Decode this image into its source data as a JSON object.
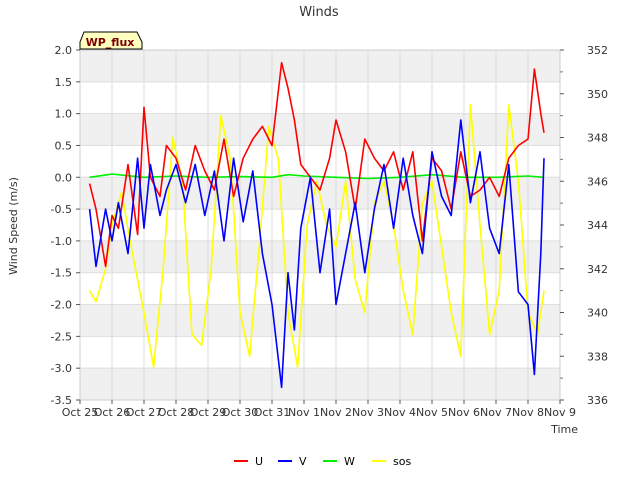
{
  "chart_data": {
    "type": "line",
    "title": "Winds",
    "xlabel": "Time",
    "ylabel": "Wind Speed (m/s)",
    "y2label": "",
    "badge": "WP_flux",
    "ylim": [
      -3.5,
      2.0
    ],
    "y2lim": [
      336,
      352
    ],
    "xlim": [
      0,
      15
    ],
    "yticks": [
      "-3.5",
      "-3.0",
      "-2.5",
      "-2.0",
      "-1.5",
      "-1.0",
      "-0.5",
      "0.0",
      "0.5",
      "1.0",
      "1.5",
      "2.0"
    ],
    "y2ticks": [
      "336",
      "338",
      "340",
      "342",
      "344",
      "346",
      "348",
      "350",
      "352"
    ],
    "xtick_labels": [
      "Oct 25",
      "Oct 26",
      "Oct 27",
      "Oct 28",
      "Oct 29",
      "Oct 30",
      "Oct 31",
      "Nov 1",
      "Nov 2",
      "Nov 3",
      "Nov 4",
      "Nov 5",
      "Nov 6",
      "Nov 7",
      "Nov 8",
      "Nov 9"
    ],
    "grid": true,
    "legend_position": "bottom-center",
    "series": [
      {
        "name": "U",
        "color": "#ff0000",
        "axis": "left",
        "x": [
          0.3,
          0.5,
          0.8,
          1.0,
          1.2,
          1.5,
          1.8,
          2.0,
          2.2,
          2.5,
          2.7,
          3.0,
          3.3,
          3.6,
          3.9,
          4.2,
          4.5,
          4.8,
          5.1,
          5.4,
          5.7,
          6.0,
          6.3,
          6.5,
          6.7,
          6.9,
          7.2,
          7.5,
          7.8,
          8.0,
          8.3,
          8.6,
          8.9,
          9.2,
          9.5,
          9.8,
          10.1,
          10.4,
          10.7,
          11.0,
          11.3,
          11.6,
          11.9,
          12.2,
          12.5,
          12.8,
          13.1,
          13.4,
          13.7,
          14.0,
          14.2,
          14.4,
          14.5
        ],
        "y": [
          -0.1,
          -0.5,
          -1.4,
          -0.6,
          -0.8,
          0.2,
          -0.9,
          1.1,
          0.0,
          -0.3,
          0.5,
          0.3,
          -0.2,
          0.5,
          0.1,
          -0.2,
          0.6,
          -0.3,
          0.3,
          0.6,
          0.8,
          0.5,
          1.8,
          1.4,
          0.9,
          0.2,
          0.0,
          -0.2,
          0.3,
          0.9,
          0.4,
          -0.5,
          0.6,
          0.3,
          0.1,
          0.4,
          -0.2,
          0.4,
          -1.0,
          0.3,
          0.1,
          -0.5,
          0.4,
          -0.3,
          -0.2,
          0.0,
          -0.3,
          0.3,
          0.5,
          0.6,
          1.7,
          1.0,
          0.7
        ]
      },
      {
        "name": "V",
        "color": "#0000ff",
        "axis": "left",
        "x": [
          0.3,
          0.5,
          0.8,
          1.0,
          1.2,
          1.5,
          1.8,
          2.0,
          2.2,
          2.5,
          2.7,
          3.0,
          3.3,
          3.6,
          3.9,
          4.2,
          4.5,
          4.8,
          5.1,
          5.4,
          5.7,
          6.0,
          6.3,
          6.5,
          6.7,
          6.9,
          7.2,
          7.5,
          7.8,
          8.0,
          8.3,
          8.6,
          8.9,
          9.2,
          9.5,
          9.8,
          10.1,
          10.4,
          10.7,
          11.0,
          11.3,
          11.6,
          11.9,
          12.2,
          12.5,
          12.8,
          13.1,
          13.4,
          13.7,
          14.0,
          14.2,
          14.4,
          14.5
        ],
        "y": [
          -0.5,
          -1.4,
          -0.5,
          -1.0,
          -0.4,
          -1.2,
          0.3,
          -0.8,
          0.2,
          -0.6,
          -0.2,
          0.2,
          -0.4,
          0.2,
          -0.6,
          0.1,
          -1.0,
          0.3,
          -0.7,
          0.1,
          -1.2,
          -2.0,
          -3.3,
          -1.5,
          -2.4,
          -0.8,
          0.0,
          -1.5,
          -0.5,
          -2.0,
          -1.2,
          -0.4,
          -1.5,
          -0.5,
          0.2,
          -0.8,
          0.3,
          -0.6,
          -1.2,
          0.4,
          -0.3,
          -0.6,
          0.9,
          -0.4,
          0.4,
          -0.8,
          -1.2,
          0.2,
          -1.8,
          -2.0,
          -3.1,
          -1.2,
          0.3
        ]
      },
      {
        "name": "W",
        "color": "#00ee00",
        "axis": "left",
        "x": [
          0.3,
          1.0,
          2.0,
          3.0,
          4.0,
          5.0,
          6.0,
          6.5,
          7.0,
          8.0,
          9.0,
          10.0,
          11.0,
          12.0,
          13.0,
          14.0,
          14.5
        ],
        "y": [
          0.0,
          0.05,
          0.0,
          0.02,
          0.0,
          0.01,
          0.0,
          0.04,
          0.02,
          0.0,
          -0.02,
          0.0,
          0.04,
          0.0,
          0.0,
          0.02,
          0.0
        ]
      },
      {
        "name": "sos",
        "color": "#ffff00",
        "axis": "right",
        "x": [
          0.3,
          0.5,
          0.8,
          1.0,
          1.3,
          1.6,
          2.0,
          2.3,
          2.6,
          2.9,
          3.2,
          3.5,
          3.8,
          4.1,
          4.4,
          4.7,
          5.0,
          5.3,
          5.6,
          5.9,
          6.2,
          6.5,
          6.8,
          7.1,
          7.4,
          7.7,
          8.0,
          8.3,
          8.6,
          8.9,
          9.2,
          9.5,
          9.8,
          10.1,
          10.4,
          10.7,
          11.0,
          11.3,
          11.6,
          11.9,
          12.2,
          12.5,
          12.8,
          13.1,
          13.4,
          13.7,
          14.0,
          14.3,
          14.5
        ],
        "y": [
          341,
          340.5,
          342,
          344,
          345.5,
          343,
          340,
          337.5,
          342,
          348,
          346,
          339,
          338.5,
          342,
          349,
          347,
          340,
          338,
          343,
          348.5,
          347,
          340,
          337.5,
          344,
          346,
          344,
          343,
          346,
          341.5,
          340,
          345,
          346,
          344,
          341,
          339,
          345,
          346,
          343,
          340,
          338,
          349.5,
          344,
          339,
          341,
          349.5,
          346,
          340,
          339,
          341
        ]
      }
    ]
  }
}
